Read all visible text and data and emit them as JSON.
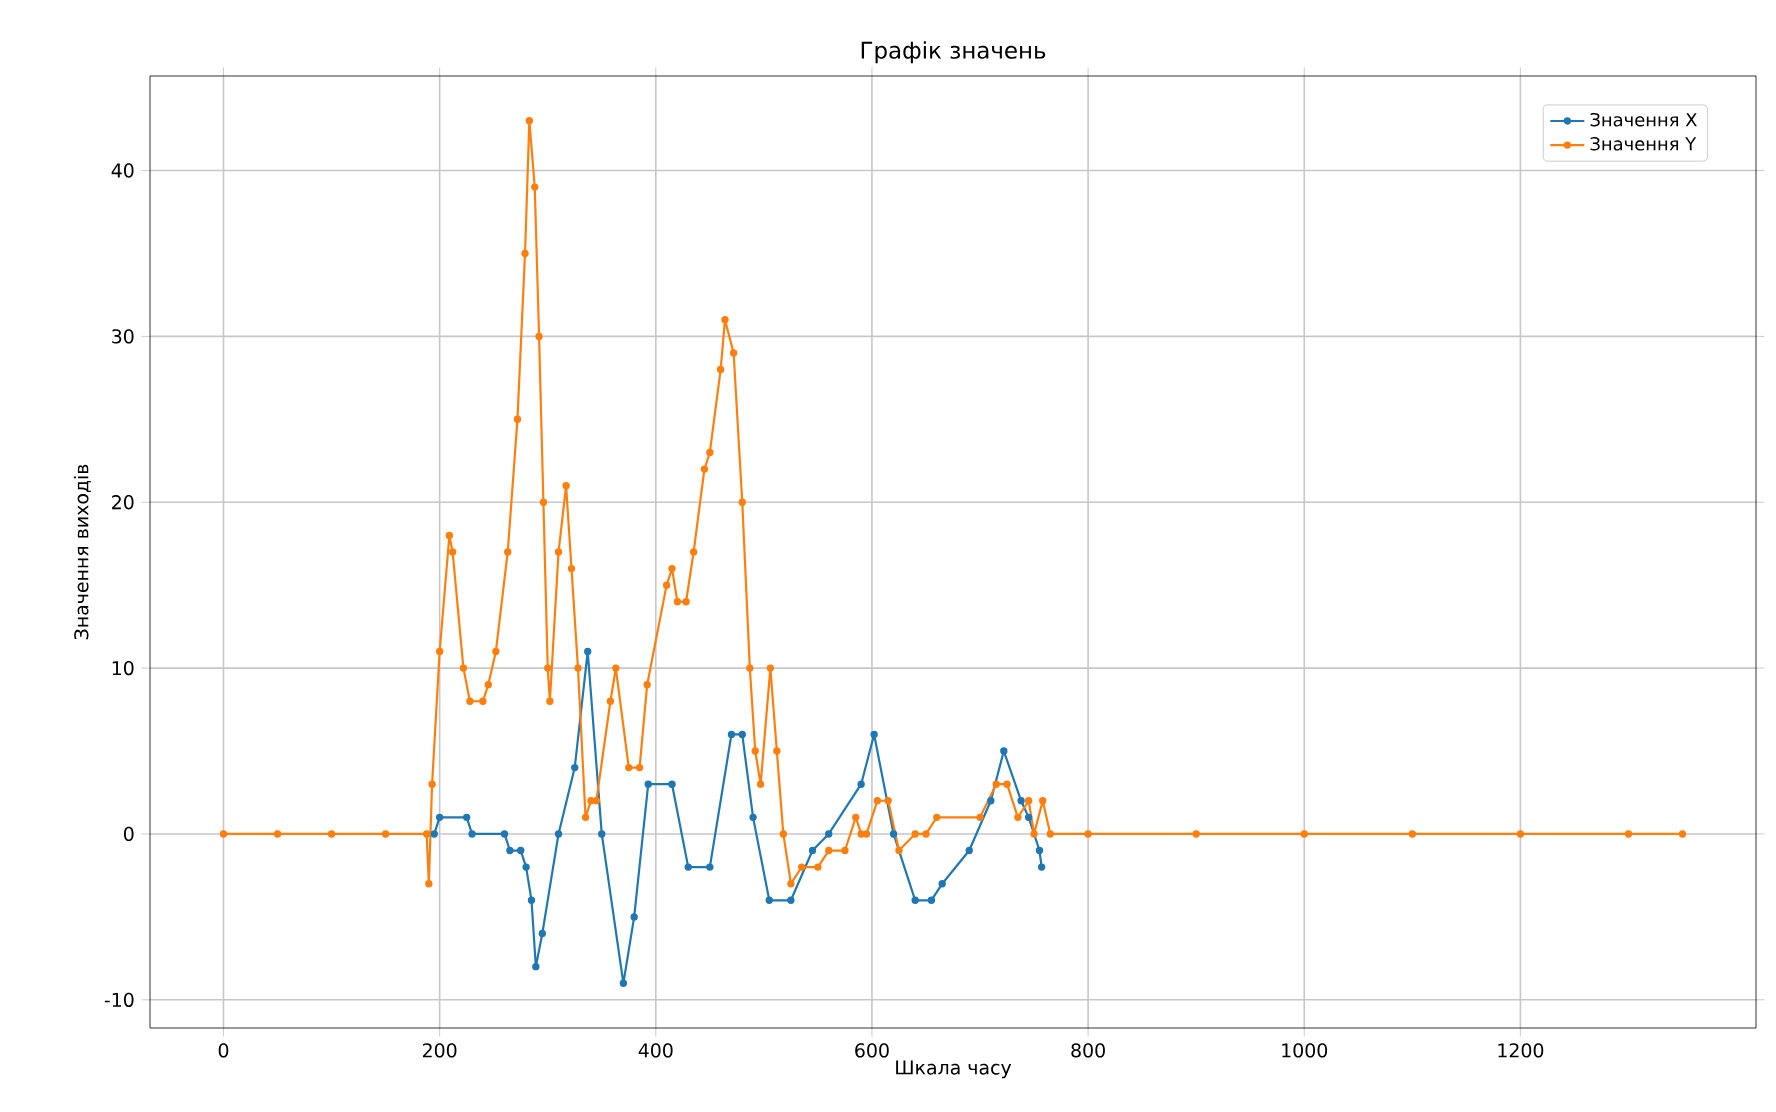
{
  "chart_data": {
    "type": "line",
    "title": "Графік значень",
    "xlabel": "Шкала часу",
    "ylabel": "Значення виходів",
    "xlim": [
      -68,
      1418
    ],
    "ylim": [
      -11.7,
      45.7
    ],
    "xticks": [
      0,
      200,
      400,
      600,
      800,
      1000,
      1200
    ],
    "yticks": [
      -10,
      0,
      10,
      20,
      30,
      40
    ],
    "grid": true,
    "legend": "top right",
    "marker": "circle",
    "line_style": "solid",
    "series": [
      {
        "name": "Значення X",
        "color": "#1f77b4",
        "x": [
          195,
          200,
          225,
          230,
          260,
          265,
          275,
          280,
          285,
          289,
          295,
          310,
          325,
          337,
          350,
          370,
          380,
          393,
          415,
          430,
          450,
          470,
          480,
          490,
          505,
          525,
          545,
          560,
          590,
          602,
          620,
          640,
          655,
          665,
          690,
          710,
          722,
          738,
          745,
          755,
          757
        ],
        "values": [
          0,
          1,
          1,
          0,
          0,
          -1,
          -1,
          -2,
          -4,
          -8,
          -6,
          0,
          4,
          11,
          0,
          -9,
          -5,
          3,
          3,
          -2,
          -2,
          6,
          6,
          1,
          -4,
          -4,
          -1,
          0,
          3,
          6,
          0,
          -4,
          -4,
          -3,
          -1,
          2,
          5,
          2,
          1,
          -1,
          -2
        ]
      },
      {
        "name": "Значення Y",
        "color": "#ff7f0e",
        "x": [
          0,
          50,
          100,
          150,
          188,
          190,
          193,
          200,
          209,
          212,
          222,
          228,
          240,
          245,
          252,
          263,
          272,
          279,
          283,
          288,
          292,
          296,
          300,
          302,
          310,
          317,
          322,
          328,
          335,
          340,
          345,
          358,
          363,
          375,
          385,
          392,
          410,
          415,
          420,
          428,
          435,
          445,
          450,
          460,
          464,
          472,
          480,
          487,
          492,
          497,
          506,
          512,
          518,
          525,
          535,
          550,
          560,
          575,
          585,
          590,
          595,
          605,
          615,
          625,
          640,
          650,
          660,
          700,
          715,
          725,
          735,
          745,
          750,
          758,
          765,
          800,
          900,
          1000,
          1100,
          1200,
          1300,
          1350
        ],
        "values": [
          0,
          0,
          0,
          0,
          0,
          -3,
          3,
          11,
          18,
          17,
          10,
          8,
          8,
          9,
          11,
          17,
          25,
          35,
          43,
          39,
          30,
          20,
          10,
          8,
          17,
          21,
          16,
          10,
          1,
          2,
          2,
          8,
          10,
          4,
          4,
          9,
          15,
          16,
          14,
          14,
          17,
          22,
          23,
          28,
          31,
          29,
          20,
          10,
          5,
          3,
          10,
          5,
          0,
          -3,
          -2,
          -2,
          -1,
          -1,
          1,
          0,
          0,
          2,
          2,
          -1,
          0,
          0,
          1,
          1,
          3,
          3,
          1,
          2,
          0,
          2,
          0,
          0,
          0,
          0,
          0,
          0,
          0,
          0
        ]
      }
    ]
  }
}
